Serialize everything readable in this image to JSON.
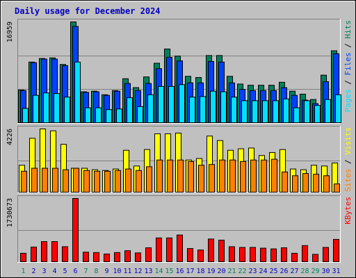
{
  "chart_data": {
    "type": "bar",
    "title": "Daily usage for December 2024",
    "categories": [
      "1",
      "2",
      "3",
      "4",
      "5",
      "6",
      "7",
      "8",
      "9",
      "10",
      "11",
      "12",
      "13",
      "14",
      "15",
      "16",
      "17",
      "18",
      "19",
      "20",
      "21",
      "22",
      "23",
      "24",
      "25",
      "26",
      "27",
      "28",
      "29",
      "30",
      "31"
    ],
    "weekend_categories": [
      "1",
      "7",
      "8",
      "14",
      "15",
      "21",
      "22",
      "28",
      "29"
    ],
    "colors": {
      "background": "#c0c0c0",
      "hits": "#00805c",
      "files": "#0040ff",
      "pages": "#00e0ff",
      "visits": "#ffff00",
      "sites": "#ff8000",
      "kbytes": "#ff0000",
      "weekday_label": "#0000c0",
      "weekend_label": "#00805c",
      "title": "#0000c0"
    },
    "panels": [
      {
        "id": "requests",
        "ymax_label": "16959",
        "ylim": [
          0,
          16959
        ],
        "legend": [
          {
            "text": "Pages",
            "color": "#00e0ff"
          },
          {
            "text": " / ",
            "color": "#000000"
          },
          {
            "text": "Files",
            "color": "#0040ff"
          },
          {
            "text": " / ",
            "color": "#000000"
          },
          {
            "text": "Hits",
            "color": "#00805c"
          }
        ],
        "series": [
          {
            "name": "Hits",
            "color": "#00805c",
            "values": [
              5500,
              10200,
              10800,
              10900,
              9800,
              16959,
              5200,
              5300,
              4700,
              5400,
              7400,
              5900,
              7700,
              10000,
              12400,
              11200,
              7800,
              7600,
              11300,
              11300,
              7800,
              6500,
              6300,
              6300,
              6300,
              6800,
              5300,
              4800,
              3900,
              8000,
              12100
            ]
          },
          {
            "name": "Files",
            "color": "#0040ff",
            "values": [
              5400,
              10100,
              10700,
              10700,
              9600,
              16200,
              5100,
              5200,
              4600,
              5300,
              6600,
              5400,
              6600,
              9100,
              11000,
              10400,
              6700,
              6700,
              10300,
              10200,
              6700,
              5600,
              5400,
              5400,
              5400,
              5900,
              4600,
              3800,
              3200,
              6900,
              11600
            ]
          },
          {
            "name": "Pages",
            "color": "#00e0ff",
            "values": [
              2400,
              4600,
              5000,
              4900,
              4300,
              10200,
              2500,
              2500,
              2200,
              2300,
              4200,
              2700,
              4700,
              6100,
              6100,
              6400,
              4300,
              4400,
              5300,
              5200,
              4300,
              3700,
              3700,
              3700,
              3700,
              4000,
              2500,
              3700,
              2900,
              3900,
              4700
            ]
          }
        ]
      },
      {
        "id": "visitors",
        "ymax_label": "4226",
        "ylim": [
          0,
          4226
        ],
        "legend": [
          {
            "text": "Sites",
            "color": "#ff8000"
          },
          {
            "text": " / ",
            "color": "#000000"
          },
          {
            "text": "Visits",
            "color": "#ffff00"
          }
        ],
        "series": [
          {
            "name": "Visits",
            "color": "#ffff00",
            "values": [
              1800,
              3600,
              4226,
              4100,
              3200,
              1600,
              1600,
              1500,
              1450,
              1550,
              2800,
              1750,
              2850,
              3900,
              3900,
              3950,
              2150,
              2250,
              3750,
              3450,
              2800,
              2900,
              2950,
              2450,
              2650,
              2850,
              1550,
              1500,
              1800,
              1750,
              1950
            ]
          },
          {
            "name": "Sites",
            "color": "#ff8000",
            "values": [
              1400,
              1600,
              1600,
              1600,
              1500,
              1600,
              1450,
              1400,
              1400,
              1450,
              1550,
              1450,
              1700,
              2150,
              2150,
              2150,
              2050,
              1800,
              1850,
              2150,
              2150,
              2050,
              2150,
              2150,
              2200,
              1350,
              1100,
              1250,
              1200,
              1100,
              550
            ]
          }
        ]
      },
      {
        "id": "kbytes",
        "ymax_label": "1730673",
        "ylim": [
          0,
          1730673
        ],
        "legend": [
          {
            "text": "KBytes",
            "color": "#ff0000"
          }
        ],
        "series": [
          {
            "name": "KBytes",
            "color": "#ff0000",
            "values": [
              230000,
              400000,
              550000,
              550000,
              410000,
              1730673,
              260000,
              250000,
              210000,
              250000,
              300000,
              240000,
              380000,
              650000,
              650000,
              730000,
              360000,
              320000,
              620000,
              590000,
              410000,
              390000,
              390000,
              370000,
              350000,
              380000,
              230000,
              440000,
              200000,
              390000,
              610000
            ]
          }
        ]
      }
    ]
  }
}
